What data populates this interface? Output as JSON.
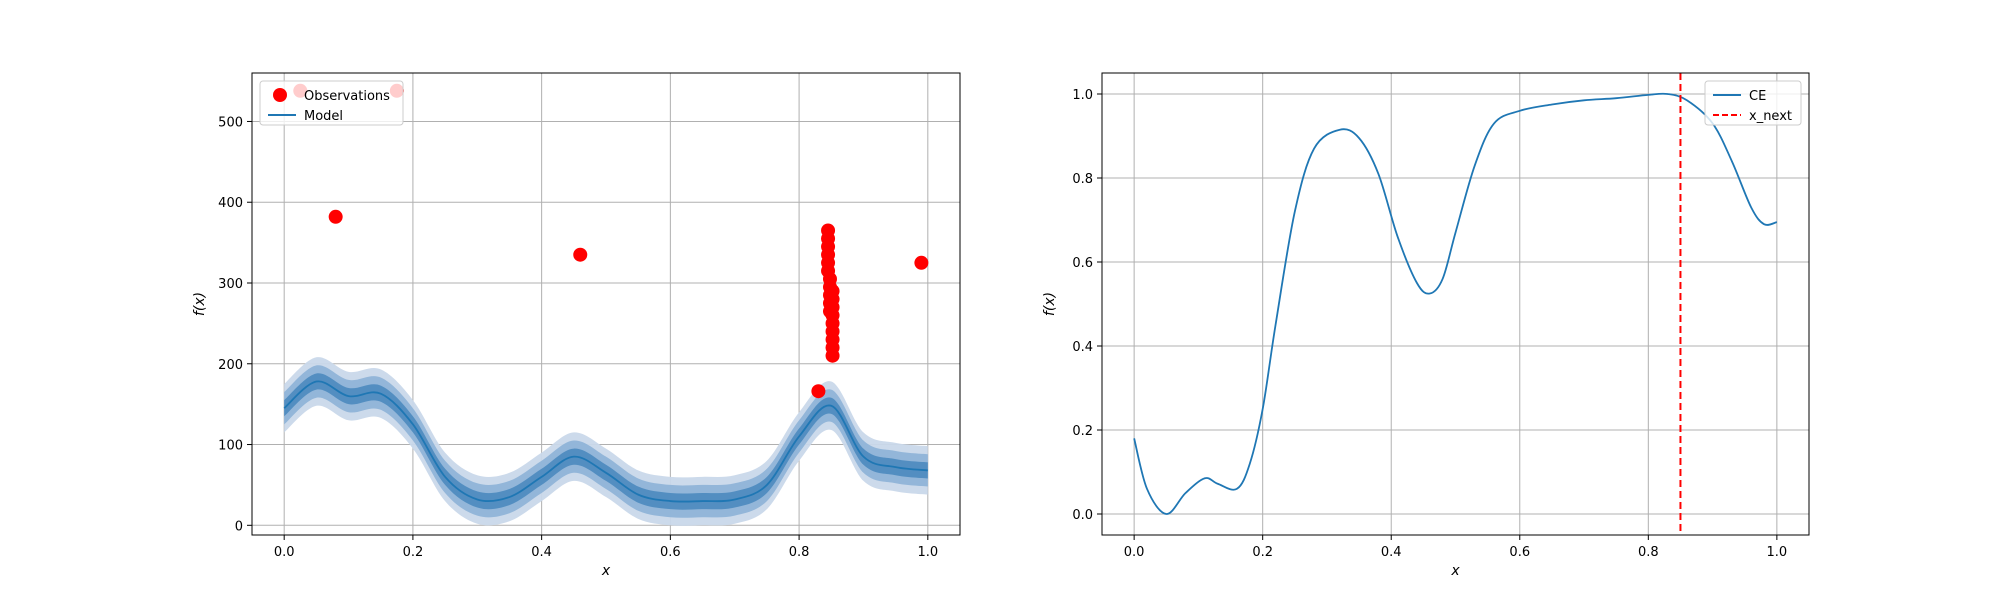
{
  "colors": {
    "model": "#1f77b4",
    "band_outer": "#c9d8ea",
    "band_mid": "#8fb4d8",
    "band_inner": "#4f8cc0",
    "observations": "#ff0000",
    "x_next": "#ff0000",
    "ce": "#1f77b4",
    "grid": "#b0b0b0"
  },
  "chart_data": [
    {
      "type": "line",
      "title": "",
      "xlabel": "x",
      "ylabel": "f(x)",
      "xlim": [
        -0.05,
        1.05
      ],
      "ylim": [
        -12,
        560
      ],
      "xticks": [
        0.0,
        0.2,
        0.4,
        0.6,
        0.8,
        1.0
      ],
      "xtick_labels": [
        "0.0",
        "0.2",
        "0.4",
        "0.6",
        "0.8",
        "1.0"
      ],
      "yticks": [
        0,
        100,
        200,
        300,
        400,
        500
      ],
      "ytick_labels": [
        "0",
        "100",
        "200",
        "300",
        "400",
        "500"
      ],
      "grid": true,
      "legend_position": "upper-left",
      "legend": [
        "Observations",
        "Model"
      ],
      "series": [
        {
          "name": "Model",
          "kind": "line_with_bands",
          "x": [
            0.0,
            0.05,
            0.1,
            0.15,
            0.2,
            0.25,
            0.3,
            0.35,
            0.4,
            0.45,
            0.5,
            0.55,
            0.6,
            0.65,
            0.7,
            0.75,
            0.8,
            0.85,
            0.9,
            0.95,
            1.0
          ],
          "y": [
            145,
            178,
            160,
            163,
            125,
            60,
            32,
            35,
            60,
            85,
            65,
            38,
            30,
            30,
            32,
            50,
            110,
            148,
            85,
            72,
            68
          ],
          "band_widths": [
            10,
            20,
            30
          ]
        },
        {
          "name": "Observations",
          "kind": "scatter",
          "points": [
            [
              0.025,
              538
            ],
            [
              0.175,
              538
            ],
            [
              0.08,
              382
            ],
            [
              0.46,
              335
            ],
            [
              0.99,
              325
            ],
            [
              0.83,
              166
            ],
            [
              0.845,
              365
            ],
            [
              0.845,
              355
            ],
            [
              0.845,
              345
            ],
            [
              0.845,
              335
            ],
            [
              0.845,
              325
            ],
            [
              0.845,
              315
            ],
            [
              0.848,
              305
            ],
            [
              0.848,
              295
            ],
            [
              0.848,
              285
            ],
            [
              0.848,
              275
            ],
            [
              0.848,
              265
            ],
            [
              0.852,
              290
            ],
            [
              0.852,
              280
            ],
            [
              0.852,
              270
            ],
            [
              0.852,
              260
            ],
            [
              0.852,
              250
            ],
            [
              0.852,
              240
            ],
            [
              0.852,
              230
            ],
            [
              0.852,
              220
            ],
            [
              0.852,
              210
            ]
          ]
        }
      ]
    },
    {
      "type": "line",
      "title": "",
      "xlabel": "x",
      "ylabel": "f(x)",
      "xlim": [
        -0.05,
        1.05
      ],
      "ylim": [
        -0.05,
        1.05
      ],
      "xticks": [
        0.0,
        0.2,
        0.4,
        0.6,
        0.8,
        1.0
      ],
      "xtick_labels": [
        "0.0",
        "0.2",
        "0.4",
        "0.6",
        "0.8",
        "1.0"
      ],
      "yticks": [
        0.0,
        0.2,
        0.4,
        0.6,
        0.8,
        1.0
      ],
      "ytick_labels": [
        "0.0",
        "0.2",
        "0.4",
        "0.6",
        "0.8",
        "1.0"
      ],
      "grid": true,
      "legend_position": "upper-right",
      "legend": [
        "CE",
        "x_next"
      ],
      "series": [
        {
          "name": "CE",
          "kind": "line",
          "x": [
            0.0,
            0.02,
            0.05,
            0.08,
            0.11,
            0.13,
            0.16,
            0.18,
            0.2,
            0.22,
            0.25,
            0.28,
            0.32,
            0.35,
            0.38,
            0.41,
            0.44,
            0.46,
            0.48,
            0.5,
            0.53,
            0.56,
            0.6,
            0.65,
            0.7,
            0.75,
            0.8,
            0.83,
            0.86,
            0.9,
            0.93,
            0.96,
            0.98,
            1.0
          ],
          "y": [
            0.18,
            0.06,
            0.0,
            0.05,
            0.085,
            0.072,
            0.06,
            0.12,
            0.25,
            0.45,
            0.72,
            0.87,
            0.915,
            0.895,
            0.81,
            0.66,
            0.55,
            0.525,
            0.56,
            0.67,
            0.83,
            0.93,
            0.96,
            0.975,
            0.985,
            0.99,
            0.998,
            1.0,
            0.985,
            0.93,
            0.84,
            0.73,
            0.69,
            0.695
          ]
        },
        {
          "name": "x_next",
          "kind": "vline",
          "x": 0.85
        }
      ]
    }
  ]
}
